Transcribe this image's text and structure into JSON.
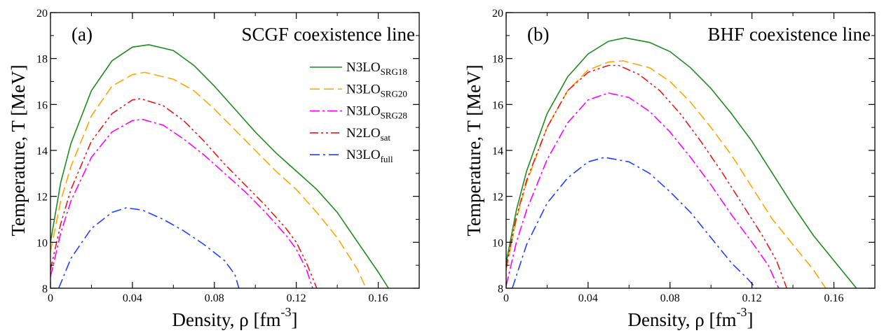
{
  "chart_data": [
    {
      "type": "line",
      "panel_label": "(a)",
      "title": "SCGF coexistence line",
      "xlabel": "Density, ρ [fm",
      "xlabel_sup": "-3",
      "xlabel_close": "]",
      "ylabel": "Temperature, T [MeV]",
      "xlim": [
        0,
        0.18
      ],
      "ylim": [
        8,
        20
      ],
      "xticks": [
        0,
        0.04,
        0.08,
        0.12,
        0.16
      ],
      "xtick_labels": [
        "0",
        "0.04",
        "0.08",
        "0.12",
        "0.16"
      ],
      "yticks": [
        8,
        10,
        12,
        14,
        16,
        18,
        20
      ],
      "ytick_labels": [
        "8",
        "10",
        "12",
        "14",
        "16",
        "18",
        "20"
      ],
      "legend_position": "top-right",
      "series": [
        {
          "name": "N3LO",
          "sub": "SRG18",
          "color": "#1f8a1f",
          "dash": "",
          "points": [
            [
              0.0,
              10.0
            ],
            [
              0.005,
              12.6
            ],
            [
              0.01,
              14.3
            ],
            [
              0.02,
              16.6
            ],
            [
              0.03,
              17.9
            ],
            [
              0.04,
              18.5
            ],
            [
              0.048,
              18.6
            ],
            [
              0.06,
              18.35
            ],
            [
              0.07,
              17.7
            ],
            [
              0.08,
              16.8
            ],
            [
              0.09,
              15.8
            ],
            [
              0.1,
              14.8
            ],
            [
              0.11,
              13.9
            ],
            [
              0.12,
              13.1
            ],
            [
              0.13,
              12.3
            ],
            [
              0.14,
              11.3
            ],
            [
              0.15,
              10.0
            ],
            [
              0.16,
              8.7
            ],
            [
              0.165,
              8.0
            ]
          ]
        },
        {
          "name": "N3LO",
          "sub": "SRG20",
          "color": "#ffa500",
          "dash": "14,6",
          "points": [
            [
              0.0,
              9.6
            ],
            [
              0.005,
              11.8
            ],
            [
              0.01,
              13.3
            ],
            [
              0.02,
              15.5
            ],
            [
              0.03,
              16.8
            ],
            [
              0.04,
              17.3
            ],
            [
              0.046,
              17.4
            ],
            [
              0.06,
              17.1
            ],
            [
              0.07,
              16.6
            ],
            [
              0.08,
              15.8
            ],
            [
              0.09,
              14.9
            ],
            [
              0.1,
              14.0
            ],
            [
              0.11,
              13.1
            ],
            [
              0.12,
              12.3
            ],
            [
              0.13,
              11.3
            ],
            [
              0.14,
              10.2
            ],
            [
              0.15,
              8.8
            ],
            [
              0.154,
              8.0
            ]
          ]
        },
        {
          "name": "N3LO",
          "sub": "SRG28",
          "color": "#ff00ff",
          "dash": "14,4,3,4",
          "points": [
            [
              0.0,
              8.5
            ],
            [
              0.005,
              10.4
            ],
            [
              0.01,
              11.8
            ],
            [
              0.02,
              13.7
            ],
            [
              0.03,
              14.8
            ],
            [
              0.04,
              15.3
            ],
            [
              0.045,
              15.35
            ],
            [
              0.055,
              15.1
            ],
            [
              0.065,
              14.5
            ],
            [
              0.075,
              13.8
            ],
            [
              0.085,
              13.0
            ],
            [
              0.095,
              12.2
            ],
            [
              0.105,
              11.3
            ],
            [
              0.115,
              10.3
            ],
            [
              0.12,
              9.7
            ],
            [
              0.125,
              8.8
            ],
            [
              0.128,
              8.0
            ]
          ]
        },
        {
          "name": "N2LO",
          "sub": "sat",
          "color": "#e31a1c",
          "dash": "12,4,3,4,3,4",
          "points": [
            [
              0.0,
              8.8
            ],
            [
              0.005,
              10.8
            ],
            [
              0.01,
              12.3
            ],
            [
              0.02,
              14.4
            ],
            [
              0.03,
              15.6
            ],
            [
              0.04,
              16.2
            ],
            [
              0.044,
              16.25
            ],
            [
              0.055,
              15.95
            ],
            [
              0.065,
              15.3
            ],
            [
              0.075,
              14.4
            ],
            [
              0.085,
              13.4
            ],
            [
              0.095,
              12.5
            ],
            [
              0.105,
              11.6
            ],
            [
              0.115,
              10.6
            ],
            [
              0.12,
              10.0
            ],
            [
              0.125,
              9.1
            ],
            [
              0.13,
              8.0
            ]
          ]
        },
        {
          "name": "N3LO",
          "sub": "full",
          "color": "#1f3fff",
          "dash": "14,5,3,5",
          "points": [
            [
              0.004,
              8.0
            ],
            [
              0.01,
              9.3
            ],
            [
              0.02,
              10.6
            ],
            [
              0.03,
              11.3
            ],
            [
              0.037,
              11.5
            ],
            [
              0.045,
              11.4
            ],
            [
              0.055,
              11.0
            ],
            [
              0.065,
              10.5
            ],
            [
              0.075,
              9.9
            ],
            [
              0.085,
              9.2
            ],
            [
              0.09,
              8.6
            ],
            [
              0.092,
              8.0
            ]
          ]
        }
      ]
    },
    {
      "type": "line",
      "panel_label": "(b)",
      "title": "BHF coexistence line",
      "xlabel": "Density, ρ [fm",
      "xlabel_sup": "-3",
      "xlabel_close": "]",
      "ylabel": "Temperature, T [MeV]",
      "xlim": [
        0,
        0.18
      ],
      "ylim": [
        8,
        20
      ],
      "xticks": [
        0,
        0.04,
        0.08,
        0.12,
        0.16
      ],
      "xtick_labels": [
        "0",
        "0.04",
        "0.08",
        "0.12",
        "0.16"
      ],
      "yticks": [
        8,
        10,
        12,
        14,
        16,
        18,
        20
      ],
      "ytick_labels": [
        "8",
        "10",
        "12",
        "14",
        "16",
        "18",
        "20"
      ],
      "series": [
        {
          "name": "N3LO",
          "sub": "SRG18",
          "color": "#1f8a1f",
          "dash": "",
          "points": [
            [
              0.0,
              9.1
            ],
            [
              0.005,
              11.4
            ],
            [
              0.01,
              13.1
            ],
            [
              0.02,
              15.6
            ],
            [
              0.03,
              17.2
            ],
            [
              0.04,
              18.2
            ],
            [
              0.05,
              18.75
            ],
            [
              0.058,
              18.9
            ],
            [
              0.07,
              18.7
            ],
            [
              0.08,
              18.3
            ],
            [
              0.09,
              17.6
            ],
            [
              0.1,
              16.7
            ],
            [
              0.11,
              15.6
            ],
            [
              0.12,
              14.4
            ],
            [
              0.13,
              13.0
            ],
            [
              0.14,
              11.6
            ],
            [
              0.15,
              10.3
            ],
            [
              0.16,
              9.2
            ],
            [
              0.171,
              8.0
            ]
          ]
        },
        {
          "name": "N3LO",
          "sub": "SRG20",
          "color": "#ffa500",
          "dash": "14,6",
          "points": [
            [
              0.0,
              8.8
            ],
            [
              0.005,
              11.0
            ],
            [
              0.01,
              12.6
            ],
            [
              0.02,
              15.0
            ],
            [
              0.03,
              16.6
            ],
            [
              0.04,
              17.5
            ],
            [
              0.05,
              17.85
            ],
            [
              0.057,
              17.9
            ],
            [
              0.07,
              17.6
            ],
            [
              0.08,
              17.0
            ],
            [
              0.09,
              16.1
            ],
            [
              0.1,
              15.0
            ],
            [
              0.11,
              13.8
            ],
            [
              0.12,
              12.4
            ],
            [
              0.13,
              11.0
            ],
            [
              0.14,
              9.9
            ],
            [
              0.15,
              8.8
            ],
            [
              0.156,
              8.0
            ]
          ]
        },
        {
          "name": "N3LO",
          "sub": "SRG28",
          "color": "#ff00ff",
          "dash": "14,4,3,4",
          "points": [
            [
              0.0,
              8.1
            ],
            [
              0.005,
              10.0
            ],
            [
              0.01,
              11.4
            ],
            [
              0.02,
              13.6
            ],
            [
              0.03,
              15.2
            ],
            [
              0.04,
              16.2
            ],
            [
              0.05,
              16.5
            ],
            [
              0.06,
              16.3
            ],
            [
              0.07,
              15.7
            ],
            [
              0.08,
              14.8
            ],
            [
              0.09,
              13.7
            ],
            [
              0.1,
              12.5
            ],
            [
              0.11,
              11.2
            ],
            [
              0.12,
              10.0
            ],
            [
              0.128,
              9.0
            ],
            [
              0.133,
              8.0
            ]
          ]
        },
        {
          "name": "N2LO",
          "sub": "sat",
          "color": "#e31a1c",
          "dash": "12,4,3,4,3,4",
          "points": [
            [
              0.0,
              8.9
            ],
            [
              0.005,
              11.1
            ],
            [
              0.01,
              12.7
            ],
            [
              0.02,
              15.0
            ],
            [
              0.03,
              16.6
            ],
            [
              0.04,
              17.4
            ],
            [
              0.05,
              17.7
            ],
            [
              0.055,
              17.7
            ],
            [
              0.065,
              17.3
            ],
            [
              0.075,
              16.6
            ],
            [
              0.085,
              15.6
            ],
            [
              0.095,
              14.4
            ],
            [
              0.105,
              13.1
            ],
            [
              0.115,
              11.7
            ],
            [
              0.125,
              10.3
            ],
            [
              0.132,
              9.2
            ],
            [
              0.137,
              8.0
            ]
          ]
        },
        {
          "name": "N3LO",
          "sub": "full",
          "color": "#1f3fff",
          "dash": "14,5,3,5",
          "points": [
            [
              0.003,
              8.0
            ],
            [
              0.01,
              9.9
            ],
            [
              0.02,
              11.7
            ],
            [
              0.03,
              12.8
            ],
            [
              0.04,
              13.5
            ],
            [
              0.048,
              13.7
            ],
            [
              0.06,
              13.5
            ],
            [
              0.07,
              13.0
            ],
            [
              0.08,
              12.2
            ],
            [
              0.09,
              11.3
            ],
            [
              0.1,
              10.2
            ],
            [
              0.11,
              9.1
            ],
            [
              0.118,
              8.4
            ],
            [
              0.122,
              8.0
            ]
          ]
        }
      ]
    }
  ]
}
